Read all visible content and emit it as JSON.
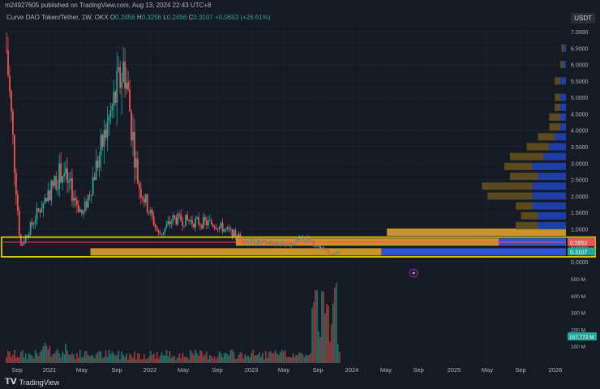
{
  "header": {
    "publisher_line": "m24927605 published on TradingView.com, Aug 13, 2024 22:43 UTC+8",
    "symbol": "Curve DAO Token/Tether, 1W, OKX",
    "ohlc": {
      "o_label": "O",
      "o": "0.2456",
      "h_label": "H",
      "h": "0.3256",
      "l_label": "L",
      "l": "0.2456",
      "c_label": "C",
      "c": "0.3107",
      "change": "+0.0653 (+26.61%)"
    },
    "currency_badge": "USDT"
  },
  "footer": {
    "brand": "TradingView",
    "logo_icon": "tradingview-logo-icon"
  },
  "colors": {
    "background": "#161a25",
    "up": "#26a69a",
    "down": "#ef5350",
    "highlight_box": "#f0e000",
    "vp_up": "#5a4a1e",
    "vp_up_bright": "#c8952a",
    "vp_down": "#1e3ea8",
    "vp_down_bright": "#2f55d4",
    "level_line": "#ef5350"
  },
  "chart_data": {
    "type": "candlestick",
    "title": "Curve DAO Token/Tether, 1W, OKX",
    "y_axis_ticks": [
      "7.0000",
      "6.5000",
      "6.0000",
      "5.5000",
      "5.0000",
      "4.5000",
      "4.0000",
      "3.5000",
      "3.0000",
      "2.5000",
      "2.0000",
      "1.5000",
      "1.0000",
      "0.5000",
      "0.0000"
    ],
    "ylim": [
      0,
      7.3
    ],
    "volume_axis_ticks": [
      "500 M",
      "400 M",
      "300 M",
      "200 M",
      "100 M"
    ],
    "volume_lim": [
      0,
      520
    ],
    "x_axis_ticks": [
      "Sep",
      "2021",
      "May",
      "Sep",
      "2022",
      "May",
      "Sep",
      "2023",
      "May",
      "Sep",
      "2024",
      "May",
      "Sep",
      "2025",
      "May",
      "Sep",
      "2026"
    ],
    "price_labels": [
      {
        "value": 0.5952,
        "text": "0.5952",
        "color": "#ef5350"
      },
      {
        "value": 0.3107,
        "text": "0.3107",
        "color": "#26a69a"
      }
    ],
    "volume_label": {
      "value": 157.772,
      "text": "157.772 M",
      "color": "#26a69a"
    },
    "horizontal_level": 0.5952,
    "highlight_range": [
      0.15,
      0.75
    ],
    "key_points": [
      {
        "date": "2020-08",
        "price": 6.45
      },
      {
        "date": "2020-10",
        "price": 0.45
      },
      {
        "date": "2021-01",
        "price": 1.7
      },
      {
        "date": "2021-04",
        "price": 2.8
      },
      {
        "date": "2021-07",
        "price": 1.4
      },
      {
        "date": "2022-01",
        "price": 6.0
      },
      {
        "date": "2022-03",
        "price": 2.4
      },
      {
        "date": "2022-06",
        "price": 0.8
      },
      {
        "date": "2022-08",
        "price": 1.3
      },
      {
        "date": "2023-02",
        "price": 1.15
      },
      {
        "date": "2023-07",
        "price": 0.6
      },
      {
        "date": "2024-01",
        "price": 0.55
      },
      {
        "date": "2024-03",
        "price": 0.7
      },
      {
        "date": "2024-07",
        "price": 0.22
      },
      {
        "date": "2024-08",
        "price": 0.3107
      }
    ],
    "volume_profile": [
      {
        "price": 0.3,
        "up": 0.52,
        "down": 0.33
      },
      {
        "price": 0.6,
        "up": 0.47,
        "down": 0.12
      },
      {
        "price": 0.9,
        "up": 0.32,
        "down": 0.0
      },
      {
        "price": 1.1,
        "up": 0.04,
        "down": 0.05
      },
      {
        "price": 1.4,
        "up": 0.03,
        "down": 0.05
      },
      {
        "price": 1.7,
        "up": 0.03,
        "down": 0.06
      },
      {
        "price": 2.0,
        "up": 0.08,
        "down": 0.06
      },
      {
        "price": 2.3,
        "up": 0.09,
        "down": 0.06
      },
      {
        "price": 2.6,
        "up": 0.05,
        "down": 0.05
      },
      {
        "price": 2.9,
        "up": 0.05,
        "down": 0.06
      },
      {
        "price": 3.2,
        "up": 0.06,
        "down": 0.04
      },
      {
        "price": 3.5,
        "up": 0.04,
        "down": 0.03
      },
      {
        "price": 3.8,
        "up": 0.03,
        "down": 0.02
      },
      {
        "price": 4.1,
        "up": 0.02,
        "down": 0.01
      },
      {
        "price": 4.4,
        "up": 0.02,
        "down": 0.01
      },
      {
        "price": 4.7,
        "up": 0.01,
        "down": 0.01
      },
      {
        "price": 5.0,
        "up": 0.01,
        "down": 0.01
      },
      {
        "price": 5.5,
        "up": 0.01,
        "down": 0.01
      },
      {
        "price": 6.0,
        "up": 0.005,
        "down": 0.005
      },
      {
        "price": 6.5,
        "up": 0.004,
        "down": 0.004
      }
    ]
  }
}
